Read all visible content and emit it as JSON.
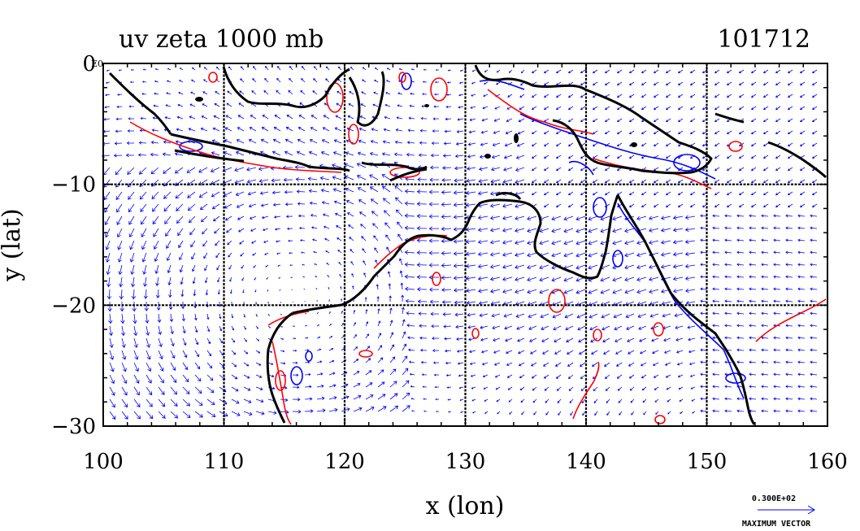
{
  "title_left": "uv zeta 1000 mb",
  "title_right": "101712",
  "corner_tick_label": "0",
  "corner_small_label": "E0",
  "chart_data": {
    "type": "map",
    "xlabel": "x (lon)",
    "ylabel": "y (lat)",
    "xlim": [
      100,
      160
    ],
    "ylim": [
      -30,
      0
    ],
    "x_ticks": [
      "100",
      "110",
      "120",
      "130",
      "140",
      "150",
      "160"
    ],
    "y_ticks": [
      "0",
      "−10",
      "−20",
      "−30"
    ],
    "x_tick_values": [
      100,
      110,
      120,
      130,
      140,
      150,
      160
    ],
    "y_tick_values": [
      0,
      -10,
      -20,
      -30
    ],
    "grid": true,
    "grid_style": "dashed black lines every 10 degrees",
    "layers": [
      {
        "name": "coastline",
        "color": "#000000"
      },
      {
        "name": "positive vorticity contours",
        "color": "#ff0000"
      },
      {
        "name": "negative vorticity contours",
        "color": "#0000ff"
      },
      {
        "name": "wind vectors",
        "color": "#0000ff"
      }
    ],
    "vector_legend": {
      "value_label": "0.300E+02",
      "caption": "MAXIMUM VECTOR"
    }
  },
  "colors": {
    "coast": "#000000",
    "positive": "#ff0000",
    "negative": "#0000ff",
    "vectors": "#0000ff",
    "background": "#ffffff"
  }
}
